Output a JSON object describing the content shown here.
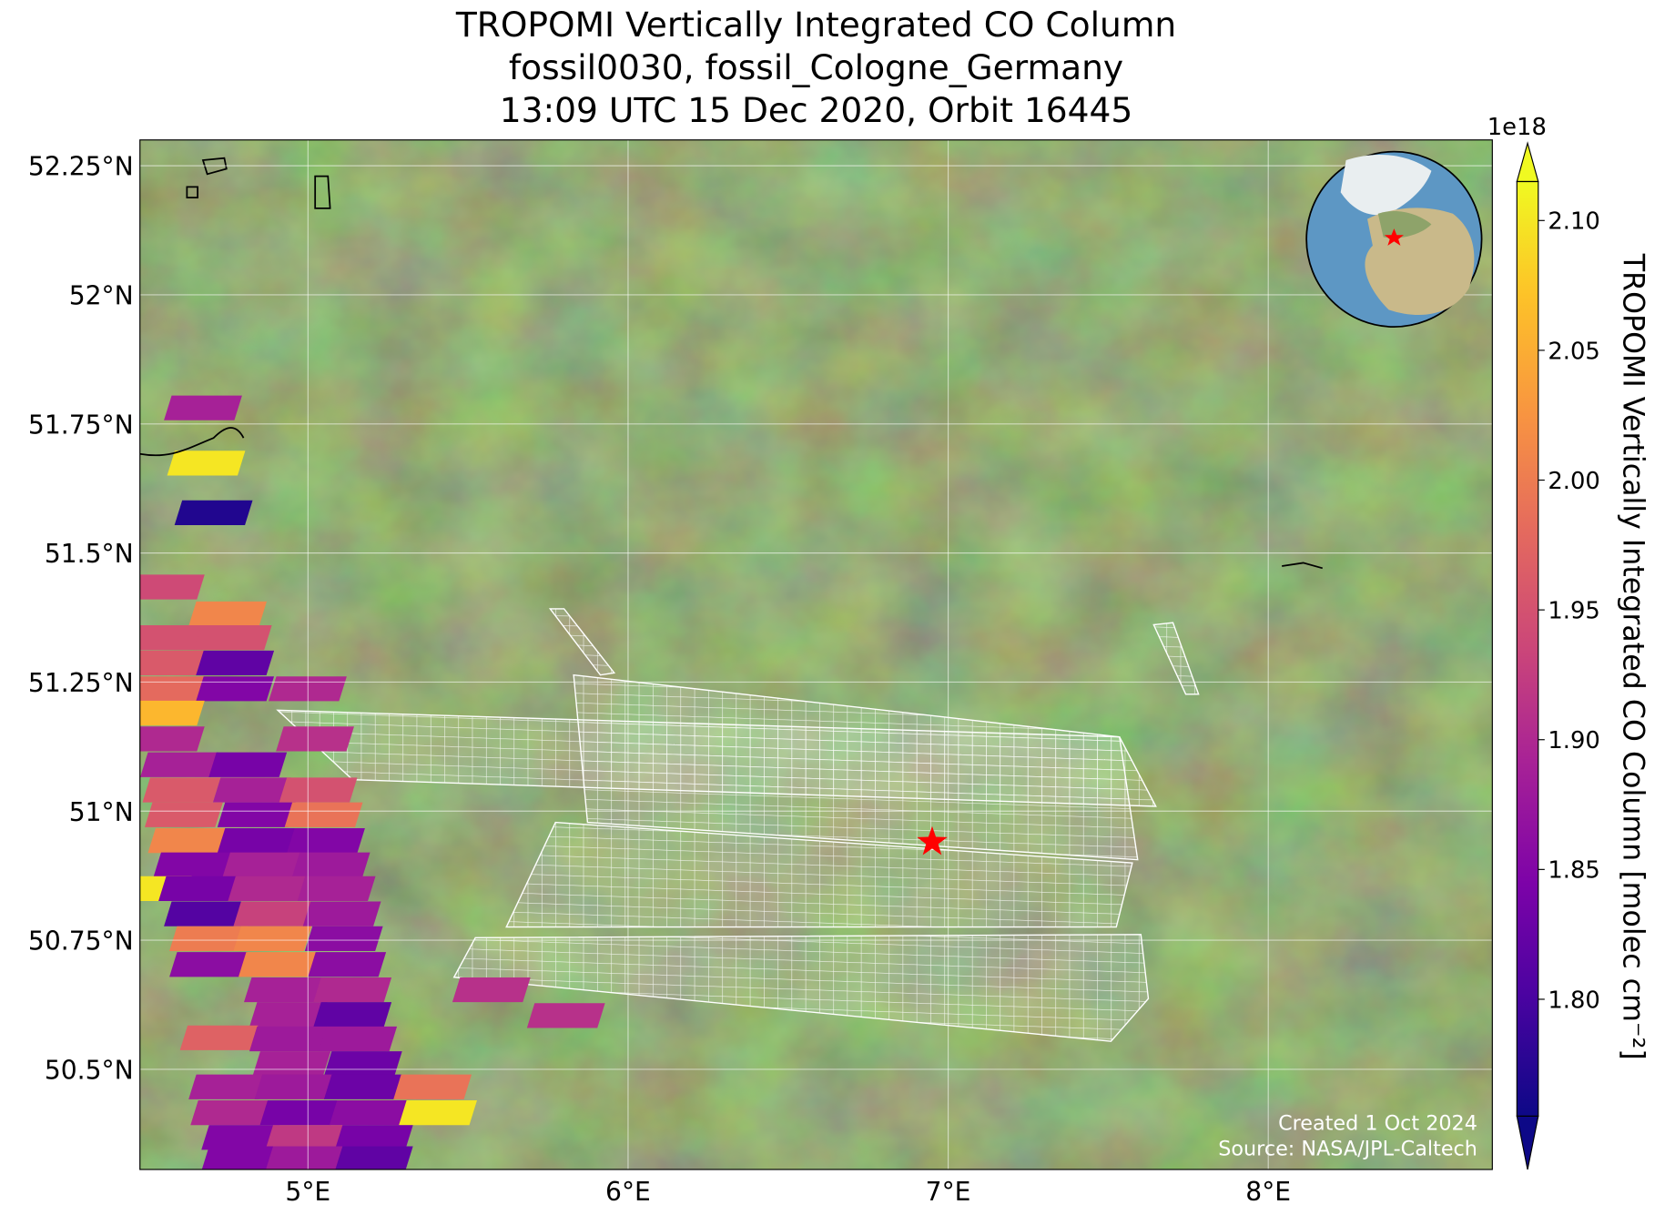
{
  "chart_data": {
    "type": "map",
    "title": [
      "TROPOMI Vertically Integrated CO Column",
      "fossil0030, fossil_Cologne_Germany",
      "13:09 UTC 15 Dec 2020, Orbit 16445"
    ],
    "xlim": [
      4.475,
      8.7
    ],
    "ylim": [
      50.306,
      52.3
    ],
    "xticks": [
      {
        "value": 5,
        "label": "5°E"
      },
      {
        "value": 6,
        "label": "6°E"
      },
      {
        "value": 7,
        "label": "7°E"
      },
      {
        "value": 8,
        "label": "8°E"
      }
    ],
    "yticks": [
      {
        "value": 50.5,
        "label": "50.5°N"
      },
      {
        "value": 50.75,
        "label": "50.75°N"
      },
      {
        "value": 51,
        "label": "51°N"
      },
      {
        "value": 51.25,
        "label": "51.25°N"
      },
      {
        "value": 51.5,
        "label": "51.5°N"
      },
      {
        "value": 51.75,
        "label": "51.75°N"
      },
      {
        "value": 52,
        "label": "52°N"
      },
      {
        "value": 52.25,
        "label": "52.25°N"
      }
    ],
    "grid": true,
    "colorbar": {
      "label": "TROPOMI Vertically Integrated CO Column [molec cm⁻²]",
      "exponent": "1e18",
      "colormap": "plasma",
      "clim": [
        1.755,
        2.115
      ],
      "ticks": [
        {
          "value": 1.8,
          "label": "1.80"
        },
        {
          "value": 1.85,
          "label": "1.85"
        },
        {
          "value": 1.9,
          "label": "1.90"
        },
        {
          "value": 1.95,
          "label": "1.95"
        },
        {
          "value": 2.0,
          "label": "2.00"
        },
        {
          "value": 2.05,
          "label": "2.05"
        },
        {
          "value": 2.1,
          "label": "2.10"
        }
      ]
    },
    "site": {
      "lon": 6.95,
      "lat": 50.94,
      "color": "#ff0000"
    },
    "cells": [
      {
        "lon": 4.672,
        "lat": 51.781,
        "value": 1.89
      },
      {
        "lon": 4.682,
        "lat": 51.674,
        "value": 2.1
      },
      {
        "lon": 4.705,
        "lat": 51.578,
        "value": 1.77
      },
      {
        "lon": 4.555,
        "lat": 51.434,
        "value": 1.94
      },
      {
        "lon": 4.749,
        "lat": 51.382,
        "value": 2.01
      },
      {
        "lon": 4.572,
        "lat": 51.336,
        "value": 1.95
      },
      {
        "lon": 4.765,
        "lat": 51.336,
        "value": 1.95
      },
      {
        "lon": 4.555,
        "lat": 51.287,
        "value": 1.96
      },
      {
        "lon": 4.772,
        "lat": 51.287,
        "value": 1.82
      },
      {
        "lon": 4.555,
        "lat": 51.237,
        "value": 1.98
      },
      {
        "lon": 4.772,
        "lat": 51.237,
        "value": 1.85
      },
      {
        "lon": 4.999,
        "lat": 51.237,
        "value": 1.9
      },
      {
        "lon": 4.555,
        "lat": 51.19,
        "value": 2.06
      },
      {
        "lon": 4.555,
        "lat": 51.14,
        "value": 1.9
      },
      {
        "lon": 5.022,
        "lat": 51.14,
        "value": 1.91
      },
      {
        "lon": 4.598,
        "lat": 51.09,
        "value": 1.89
      },
      {
        "lon": 4.812,
        "lat": 51.09,
        "value": 1.84
      },
      {
        "lon": 4.605,
        "lat": 51.041,
        "value": 1.96
      },
      {
        "lon": 4.825,
        "lat": 51.041,
        "value": 1.89
      },
      {
        "lon": 5.032,
        "lat": 51.041,
        "value": 1.95
      },
      {
        "lon": 4.612,
        "lat": 50.993,
        "value": 1.96
      },
      {
        "lon": 4.839,
        "lat": 50.993,
        "value": 1.85
      },
      {
        "lon": 5.049,
        "lat": 50.993,
        "value": 1.99
      },
      {
        "lon": 4.622,
        "lat": 50.943,
        "value": 2.01
      },
      {
        "lon": 4.839,
        "lat": 50.943,
        "value": 1.84
      },
      {
        "lon": 5.056,
        "lat": 50.943,
        "value": 1.85
      },
      {
        "lon": 4.639,
        "lat": 50.896,
        "value": 1.85
      },
      {
        "lon": 4.855,
        "lat": 50.896,
        "value": 1.89
      },
      {
        "lon": 5.072,
        "lat": 50.896,
        "value": 1.88
      },
      {
        "lon": 4.515,
        "lat": 50.85,
        "value": 2.1
      },
      {
        "lon": 4.655,
        "lat": 50.85,
        "value": 1.84
      },
      {
        "lon": 4.872,
        "lat": 50.85,
        "value": 1.9
      },
      {
        "lon": 5.089,
        "lat": 50.85,
        "value": 1.89
      },
      {
        "lon": 4.672,
        "lat": 50.801,
        "value": 1.81
      },
      {
        "lon": 4.889,
        "lat": 50.801,
        "value": 1.93
      },
      {
        "lon": 5.106,
        "lat": 50.801,
        "value": 1.88
      },
      {
        "lon": 4.689,
        "lat": 50.753,
        "value": 2.0
      },
      {
        "lon": 4.889,
        "lat": 50.753,
        "value": 2.01
      },
      {
        "lon": 5.112,
        "lat": 50.753,
        "value": 1.86
      },
      {
        "lon": 4.689,
        "lat": 50.703,
        "value": 1.86
      },
      {
        "lon": 4.905,
        "lat": 50.703,
        "value": 2.01
      },
      {
        "lon": 5.122,
        "lat": 50.703,
        "value": 1.86
      },
      {
        "lon": 4.922,
        "lat": 50.654,
        "value": 1.89
      },
      {
        "lon": 5.139,
        "lat": 50.654,
        "value": 1.9
      },
      {
        "lon": 5.573,
        "lat": 50.654,
        "value": 1.91
      },
      {
        "lon": 4.939,
        "lat": 50.606,
        "value": 1.89
      },
      {
        "lon": 5.139,
        "lat": 50.606,
        "value": 1.82
      },
      {
        "lon": 5.806,
        "lat": 50.604,
        "value": 1.91
      },
      {
        "lon": 4.722,
        "lat": 50.561,
        "value": 1.97
      },
      {
        "lon": 4.939,
        "lat": 50.559,
        "value": 1.88
      },
      {
        "lon": 5.156,
        "lat": 50.559,
        "value": 1.88
      },
      {
        "lon": 4.949,
        "lat": 50.511,
        "value": 1.89
      },
      {
        "lon": 5.172,
        "lat": 50.511,
        "value": 1.83
      },
      {
        "lon": 4.749,
        "lat": 50.466,
        "value": 1.89
      },
      {
        "lon": 4.955,
        "lat": 50.466,
        "value": 1.88
      },
      {
        "lon": 5.172,
        "lat": 50.466,
        "value": 1.83
      },
      {
        "lon": 5.389,
        "lat": 50.466,
        "value": 1.99
      },
      {
        "lon": 4.755,
        "lat": 50.416,
        "value": 1.9
      },
      {
        "lon": 4.972,
        "lat": 50.416,
        "value": 1.84
      },
      {
        "lon": 5.189,
        "lat": 50.416,
        "value": 1.86
      },
      {
        "lon": 5.406,
        "lat": 50.416,
        "value": 2.1
      },
      {
        "lon": 4.789,
        "lat": 50.368,
        "value": 1.85
      },
      {
        "lon": 4.989,
        "lat": 50.368,
        "value": 1.92
      },
      {
        "lon": 5.206,
        "lat": 50.368,
        "value": 1.84
      },
      {
        "lon": 4.789,
        "lat": 50.327,
        "value": 1.85
      },
      {
        "lon": 4.989,
        "lat": 50.327,
        "value": 1.88
      },
      {
        "lon": 5.206,
        "lat": 50.327,
        "value": 1.82
      }
    ],
    "credits": [
      "Created 1 Oct 2024",
      "Source: NASA/JPL-Caltech"
    ]
  }
}
